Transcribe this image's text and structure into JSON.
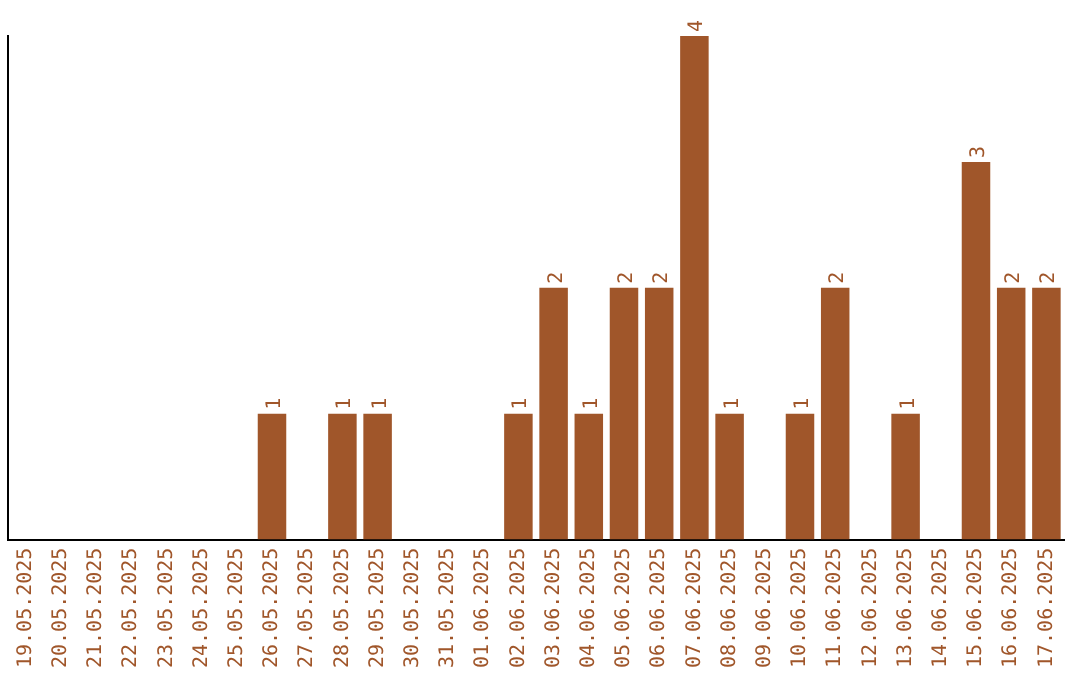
{
  "chart_data": {
    "type": "bar",
    "categories": [
      "19.05.2025",
      "20.05.2025",
      "21.05.2025",
      "22.05.2025",
      "23.05.2025",
      "24.05.2025",
      "25.05.2025",
      "26.05.2025",
      "27.05.2025",
      "28.05.2025",
      "29.05.2025",
      "30.05.2025",
      "31.05.2025",
      "01.06.2025",
      "02.06.2025",
      "03.06.2025",
      "04.06.2025",
      "05.06.2025",
      "06.06.2025",
      "07.06.2025",
      "08.06.2025",
      "09.06.2025",
      "10.06.2025",
      "11.06.2025",
      "12.06.2025",
      "13.06.2025",
      "14.06.2025",
      "15.06.2025",
      "16.06.2025",
      "17.06.2025"
    ],
    "values": [
      0,
      0,
      0,
      0,
      0,
      0,
      0,
      1,
      0,
      1,
      1,
      0,
      0,
      0,
      1,
      2,
      1,
      2,
      2,
      4,
      1,
      0,
      1,
      2,
      0,
      1,
      0,
      3,
      2,
      2
    ],
    "value_labels": [
      null,
      null,
      null,
      null,
      null,
      null,
      null,
      "1",
      null,
      "1",
      "1",
      null,
      null,
      null,
      "1",
      "2",
      "1",
      "2",
      "2",
      "4",
      "1",
      null,
      "1",
      "2",
      null,
      "1",
      null,
      "3",
      "2",
      "2"
    ],
    "color": "#a0562a",
    "grid": false,
    "legend": false,
    "tick_labels": "x"
  }
}
